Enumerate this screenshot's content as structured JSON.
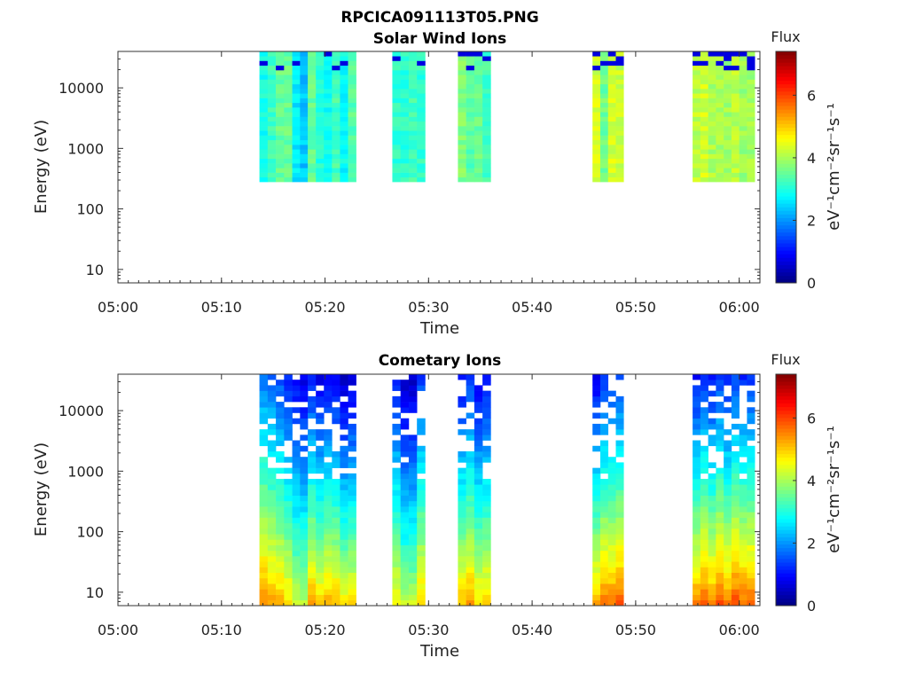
{
  "figure_title": "RPCICA091113T05.PNG",
  "chart_data": [
    {
      "type": "heatmap",
      "title": "Solar Wind Ions",
      "xlabel": "Time",
      "ylabel": "Energy (eV)",
      "x_scale": "time",
      "y_scale": "log",
      "xlim": [
        "05:00",
        "06:02"
      ],
      "ylim": [
        6,
        40000
      ],
      "x_ticks": [
        "05:00",
        "05:10",
        "05:20",
        "05:30",
        "05:40",
        "05:50",
        "06:00"
      ],
      "y_ticks": [
        "10",
        "100",
        "1000",
        "10000"
      ],
      "colorbar": {
        "title": "Flux",
        "label": "eV⁻¹cm⁻²sr⁻¹s⁻¹",
        "range": [
          0,
          7.4
        ],
        "ticks": [
          "0",
          "2",
          "4",
          "6"
        ],
        "colormap": "jet"
      },
      "energy_range": [
        280,
        40000
      ],
      "segments": [
        {
          "start": "05:13:40",
          "end": "05:16:50",
          "flux": 3.2
        },
        {
          "start": "05:16:50",
          "end": "05:18:20",
          "flux": 2.6
        },
        {
          "start": "05:18:20",
          "end": "05:23:00",
          "flux": 3.1
        },
        {
          "start": "05:26:30",
          "end": "05:29:40",
          "flux": 3.0
        },
        {
          "start": "05:32:50",
          "end": "05:36:00",
          "flux": 3.5
        },
        {
          "start": "05:45:50",
          "end": "05:48:50",
          "flux": 3.9
        },
        {
          "start": "05:55:30",
          "end": "06:01:30",
          "flux": 3.9
        }
      ]
    },
    {
      "type": "heatmap",
      "title": "Cometary Ions",
      "xlabel": "Time",
      "ylabel": "Energy (eV)",
      "x_scale": "time",
      "y_scale": "log",
      "xlim": [
        "05:00",
        "06:02"
      ],
      "ylim": [
        6,
        40000
      ],
      "x_ticks": [
        "05:00",
        "05:10",
        "05:20",
        "05:30",
        "05:40",
        "05:50",
        "06:00"
      ],
      "y_ticks": [
        "10",
        "100",
        "1000",
        "10000"
      ],
      "colorbar": {
        "title": "Flux",
        "label": "eV⁻¹cm⁻²sr⁻¹s⁻¹",
        "range": [
          0,
          7.4
        ],
        "ticks": [
          "0",
          "2",
          "4",
          "6"
        ],
        "colormap": "jet"
      },
      "energy_range": [
        6,
        40000
      ],
      "segments": [
        {
          "start": "05:13:40",
          "end": "05:16:50",
          "flux_low": 5.3,
          "flux_high": 1.6
        },
        {
          "start": "05:16:50",
          "end": "05:18:20",
          "flux_low": 4.4,
          "flux_high": 1.0
        },
        {
          "start": "05:18:20",
          "end": "05:23:00",
          "flux_low": 4.9,
          "flux_high": 0.7
        },
        {
          "start": "05:26:30",
          "end": "05:29:40",
          "flux_low": 4.6,
          "flux_high": 0.9
        },
        {
          "start": "05:32:50",
          "end": "05:36:00",
          "flux_low": 5.0,
          "flux_high": 0.9
        },
        {
          "start": "05:45:50",
          "end": "05:48:50",
          "flux_low": 5.4,
          "flux_high": 1.0
        },
        {
          "start": "05:55:30",
          "end": "06:01:30",
          "flux_low": 5.5,
          "flux_high": 1.0
        }
      ]
    }
  ]
}
